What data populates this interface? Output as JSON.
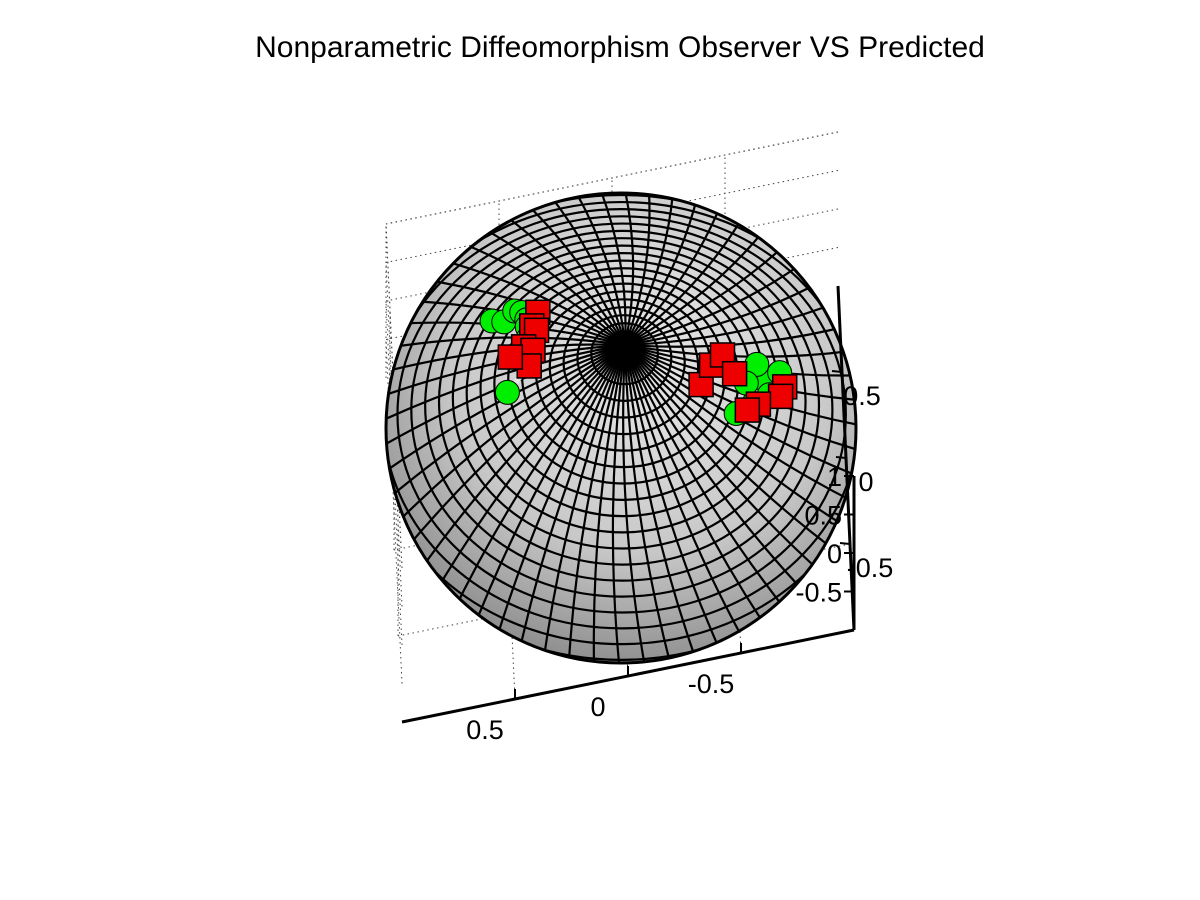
{
  "chart_data": {
    "type": "scatter",
    "projection": "3d",
    "title": "Nonparametric Diffeomorphism Observer VS Predicted",
    "surface": {
      "shape": "unit-sphere",
      "face_color": "#c8c8c8",
      "edge_color": "#000000"
    },
    "grid": true,
    "axes": {
      "x": {
        "ticks": [
          0.5,
          0,
          -0.5
        ],
        "tick_labels": [
          "0.5",
          "0",
          "-0.5"
        ],
        "lim": [
          -1,
          1
        ]
      },
      "y": {
        "ticks": [
          0.5,
          0,
          -0.5
        ],
        "tick_labels": [
          "0.5",
          "0",
          "-0.5"
        ],
        "lim": [
          -1,
          1
        ]
      },
      "z": {
        "ticks": [
          1,
          0.5,
          0,
          -0.5
        ],
        "tick_labels": [
          "1",
          "0.5",
          "0",
          "-0.5"
        ],
        "lim": [
          -1,
          1
        ]
      }
    },
    "series": [
      {
        "marker": "circle",
        "color": "#00ee00",
        "points": [
          [
            0.55,
            0.45,
            0.7
          ],
          [
            0.5,
            0.4,
            0.77
          ],
          [
            0.45,
            0.45,
            0.77
          ],
          [
            0.42,
            0.42,
            0.8
          ],
          [
            0.4,
            0.35,
            0.85
          ],
          [
            0.4,
            0.3,
            0.87
          ],
          [
            0.4,
            0.22,
            0.89
          ],
          [
            0.45,
            0.15,
            0.88
          ],
          [
            0.4,
            0.1,
            0.91
          ],
          [
            0.5,
            -0.05,
            0.86
          ],
          [
            -0.62,
            -0.22,
            0.75
          ],
          [
            -0.7,
            -0.18,
            0.69
          ],
          [
            -0.6,
            -0.15,
            0.79
          ],
          [
            -0.65,
            -0.3,
            0.7
          ],
          [
            -0.58,
            -0.35,
            0.74
          ],
          [
            -0.55,
            -0.25,
            0.8
          ],
          [
            -0.5,
            -0.4,
            0.77
          ]
        ]
      },
      {
        "marker": "square",
        "color": "#ee0000",
        "points": [
          [
            0.35,
            0.38,
            0.85
          ],
          [
            0.38,
            0.3,
            0.87
          ],
          [
            0.36,
            0.26,
            0.89
          ],
          [
            0.42,
            0.18,
            0.89
          ],
          [
            0.38,
            0.14,
            0.91
          ],
          [
            0.4,
            0.05,
            0.92
          ],
          [
            0.48,
            0.15,
            0.86
          ],
          [
            -0.35,
            -0.25,
            0.9
          ],
          [
            -0.4,
            -0.15,
            0.9
          ],
          [
            -0.45,
            -0.1,
            0.89
          ],
          [
            -0.72,
            -0.25,
            0.65
          ],
          [
            -0.7,
            -0.3,
            0.65
          ],
          [
            -0.6,
            -0.35,
            0.72
          ],
          [
            -0.55,
            -0.38,
            0.74
          ],
          [
            -0.5,
            -0.2,
            0.84
          ]
        ]
      }
    ],
    "connector_color": "#e6e6e6",
    "view": {
      "azimuth": -15,
      "elevation": 80
    }
  }
}
